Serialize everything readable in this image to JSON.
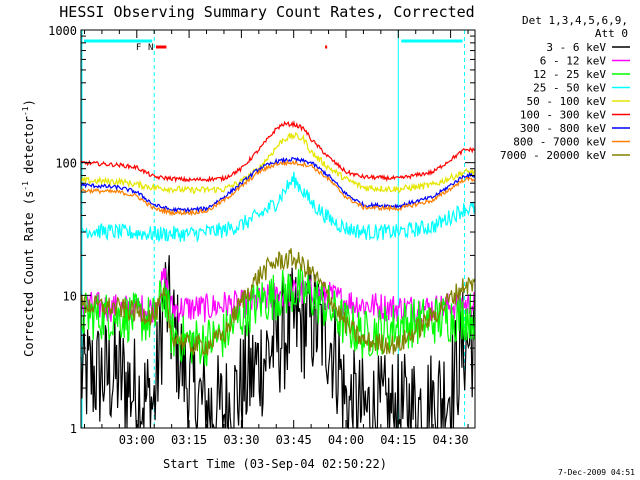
{
  "chart_data": {
    "type": "line",
    "title": "HESSI Observing Summary Count Rates, Corrected",
    "xlabel": "Start Time (03-Sep-04 02:50:22)",
    "ylabel": "Corrected Count Rate (s⁻¹ detector⁻¹)",
    "x_ticks": [
      "03:00",
      "03:15",
      "03:30",
      "03:45",
      "04:00",
      "04:15",
      "04:30"
    ],
    "x_tick_minutes": [
      10,
      25,
      40,
      55,
      70,
      85,
      100
    ],
    "xlim_minutes": [
      -6,
      107
    ],
    "y_scale": "log",
    "ylim": [
      1,
      1000
    ],
    "y_ticks": [
      1,
      10,
      100,
      1000
    ],
    "y_tick_labels": [
      "1",
      "10",
      "100",
      "1000"
    ],
    "grid": false,
    "legend": {
      "placement": "right",
      "header": [
        "Det 1,3,4,5,6,9,",
        "Att 0"
      ],
      "entries": [
        {
          "label": "3 - 6 keV",
          "color": "#000000"
        },
        {
          "label": "6 - 12 keV",
          "color": "#ff00ff"
        },
        {
          "label": "12 - 25 keV",
          "color": "#00ff00"
        },
        {
          "label": "25 - 50 keV",
          "color": "#00ffff"
        },
        {
          "label": "50 - 100 keV",
          "color": "#e6e600"
        },
        {
          "label": "100 - 300 keV",
          "color": "#ff0000"
        },
        {
          "label": "300 - 800 keV",
          "color": "#0000ff"
        },
        {
          "label": "800 - 7000 keV",
          "color": "#ff8000"
        },
        {
          "label": "7000 - 20000 keV",
          "color": "#808000"
        }
      ]
    },
    "series": [
      {
        "name": "3 - 6 keV",
        "color": "#000000",
        "noise": 0.9,
        "x": [
          -6,
          5,
          10,
          15,
          18,
          20,
          25,
          30,
          35,
          40,
          45,
          50,
          55,
          60,
          65,
          68,
          70,
          75,
          85,
          95,
          100,
          104
        ],
        "y": [
          2.5,
          2.5,
          1.8,
          1.5,
          10,
          6,
          2,
          1.4,
          1.3,
          2,
          3,
          4.5,
          6,
          6.5,
          5,
          3,
          1.5,
          1.3,
          1.3,
          1.5,
          2,
          4.5
        ]
      },
      {
        "name": "6 - 12 keV",
        "color": "#ff00ff",
        "noise": 0.22,
        "x": [
          -6,
          5,
          15,
          18,
          20,
          25,
          30,
          35,
          40,
          45,
          50,
          55,
          60,
          65,
          70,
          75,
          85,
          95,
          104
        ],
        "y": [
          8.5,
          8,
          8,
          14,
          8,
          8,
          8,
          8.5,
          8.5,
          9,
          10,
          10.5,
          10.5,
          10,
          9,
          8.5,
          8,
          8,
          8.5
        ]
      },
      {
        "name": "12 - 25 keV",
        "color": "#00ff00",
        "noise": 0.38,
        "x": [
          -6,
          5,
          15,
          18,
          20,
          25,
          30,
          35,
          40,
          45,
          50,
          55,
          60,
          65,
          70,
          75,
          85,
          95,
          104
        ],
        "y": [
          7,
          7,
          6.5,
          11,
          5,
          4.5,
          4.5,
          5,
          7,
          9,
          10,
          11,
          10,
          8,
          6,
          5,
          6,
          6.5,
          7
        ]
      },
      {
        "name": "25 - 50 keV",
        "color": "#00ffff",
        "noise": 0.12,
        "x": [
          -6,
          5,
          15,
          25,
          35,
          40,
          45,
          50,
          53,
          55,
          57,
          60,
          65,
          70,
          75,
          85,
          95,
          104
        ],
        "y": [
          31,
          30,
          29,
          29,
          31,
          34,
          40,
          50,
          65,
          75,
          65,
          50,
          38,
          32,
          30,
          30,
          33,
          45
        ]
      },
      {
        "name": "50 - 100 keV",
        "color": "#e6e600",
        "noise": 0.05,
        "x": [
          -6,
          5,
          15,
          25,
          35,
          40,
          45,
          50,
          52,
          55,
          58,
          60,
          65,
          70,
          75,
          85,
          95,
          104
        ],
        "y": [
          73,
          72,
          65,
          62,
          63,
          72,
          90,
          130,
          150,
          160,
          150,
          120,
          92,
          75,
          65,
          63,
          68,
          85
        ]
      },
      {
        "name": "100 - 300 keV",
        "color": "#ff0000",
        "noise": 0.03,
        "x": [
          -6,
          5,
          10,
          15,
          25,
          35,
          40,
          45,
          50,
          52,
          55,
          58,
          60,
          65,
          70,
          75,
          85,
          95,
          104
        ],
        "y": [
          100,
          96,
          92,
          78,
          74,
          76,
          90,
          125,
          180,
          195,
          195,
          180,
          150,
          110,
          85,
          78,
          76,
          85,
          125
        ]
      },
      {
        "name": "300 - 800 keV",
        "color": "#0000ff",
        "noise": 0.03,
        "x": [
          -6,
          5,
          10,
          15,
          20,
          25,
          30,
          35,
          40,
          45,
          50,
          55,
          60,
          65,
          70,
          75,
          85,
          95,
          104
        ],
        "y": [
          68,
          65,
          60,
          48,
          44,
          44,
          45,
          55,
          70,
          90,
          102,
          106,
          100,
          80,
          58,
          48,
          47,
          55,
          80
        ]
      },
      {
        "name": "800 - 7000 keV",
        "color": "#ff8000",
        "noise": 0.03,
        "x": [
          -6,
          5,
          10,
          15,
          20,
          25,
          30,
          35,
          40,
          45,
          50,
          55,
          60,
          65,
          70,
          75,
          85,
          95,
          104
        ],
        "y": [
          62,
          60,
          56,
          45,
          42,
          42,
          43,
          52,
          66,
          85,
          98,
          100,
          95,
          75,
          55,
          46,
          45,
          52,
          75
        ]
      },
      {
        "name": "7000 - 20000 keV",
        "color": "#808000",
        "noise": 0.16,
        "x": [
          -6,
          5,
          15,
          18,
          20,
          25,
          30,
          35,
          40,
          45,
          50,
          55,
          60,
          65,
          70,
          75,
          85,
          95,
          104
        ],
        "y": [
          8.5,
          8,
          7,
          10,
          5,
          4.2,
          4.2,
          5,
          9,
          14,
          18,
          19,
          15,
          10,
          6,
          4.5,
          4.2,
          7,
          12
        ]
      }
    ],
    "annotations": [
      {
        "text": "F",
        "color": "#ff0000",
        "x_minute": 10.5
      },
      {
        "text": "N",
        "color": "#00ffff",
        "x_minute": 14
      }
    ],
    "footer_timestamp": "7-Dec-2009 04:51"
  }
}
